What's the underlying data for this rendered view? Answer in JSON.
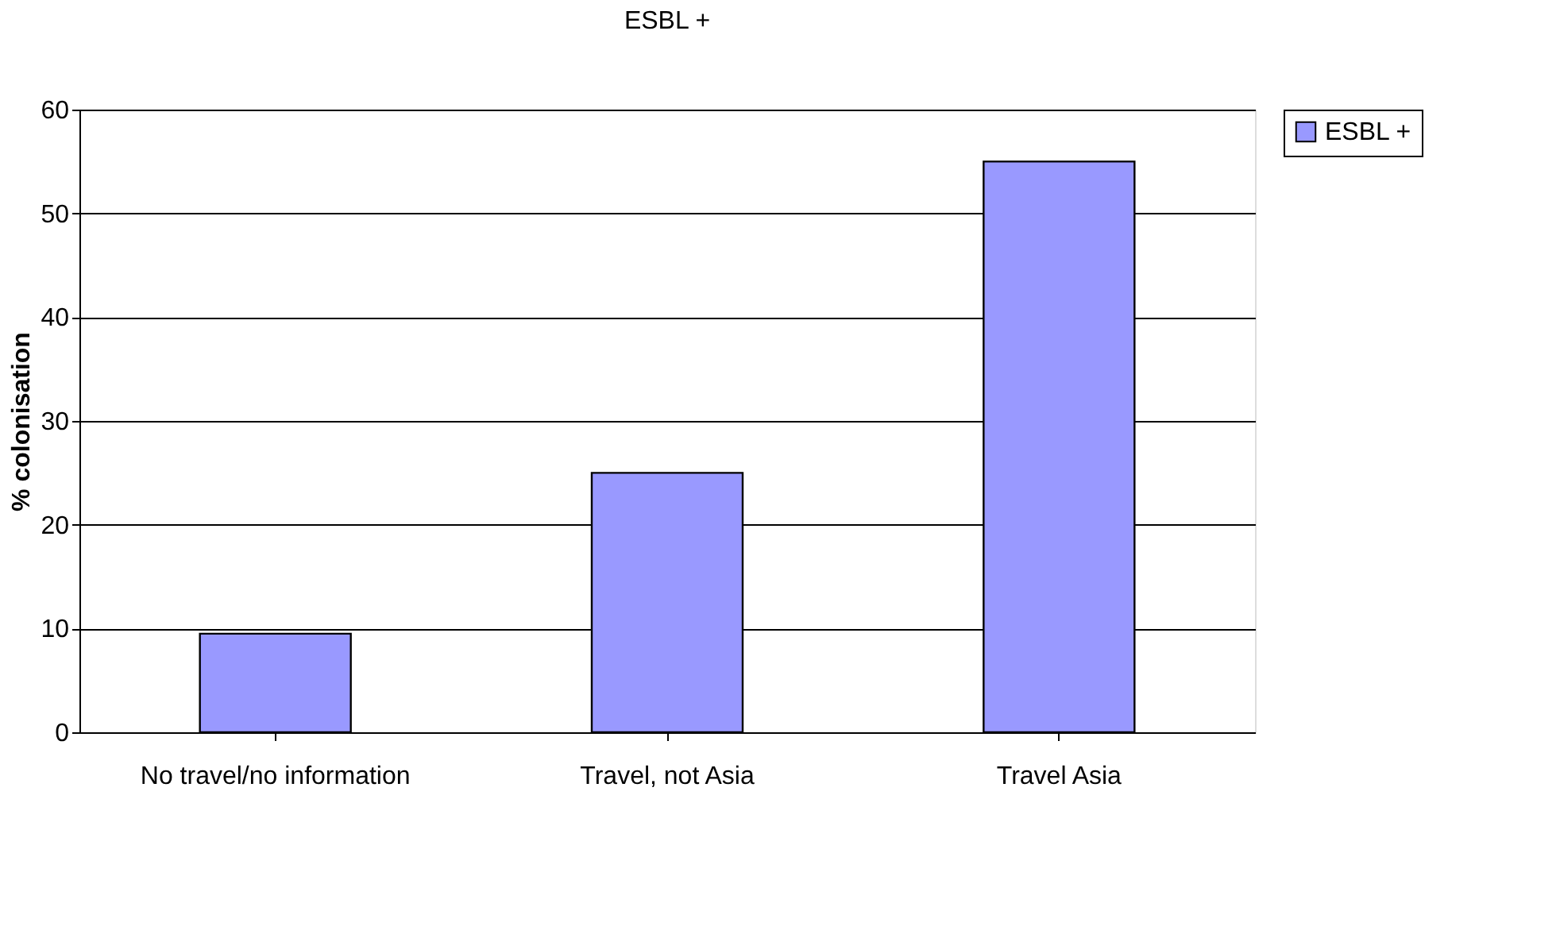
{
  "chart_data": {
    "type": "bar",
    "title": "ESBL +",
    "ylabel": "% colonisation",
    "categories": [
      "No travel/no information",
      "Travel, not Asia",
      "Travel Asia"
    ],
    "series": [
      {
        "name": "ESBL +",
        "color": "#9999ff",
        "values": [
          9.5,
          25,
          55
        ]
      }
    ],
    "ylim": [
      0,
      60
    ],
    "yticks": [
      0,
      10,
      20,
      30,
      40,
      50,
      60
    ],
    "grid": "y",
    "legend": "right"
  }
}
